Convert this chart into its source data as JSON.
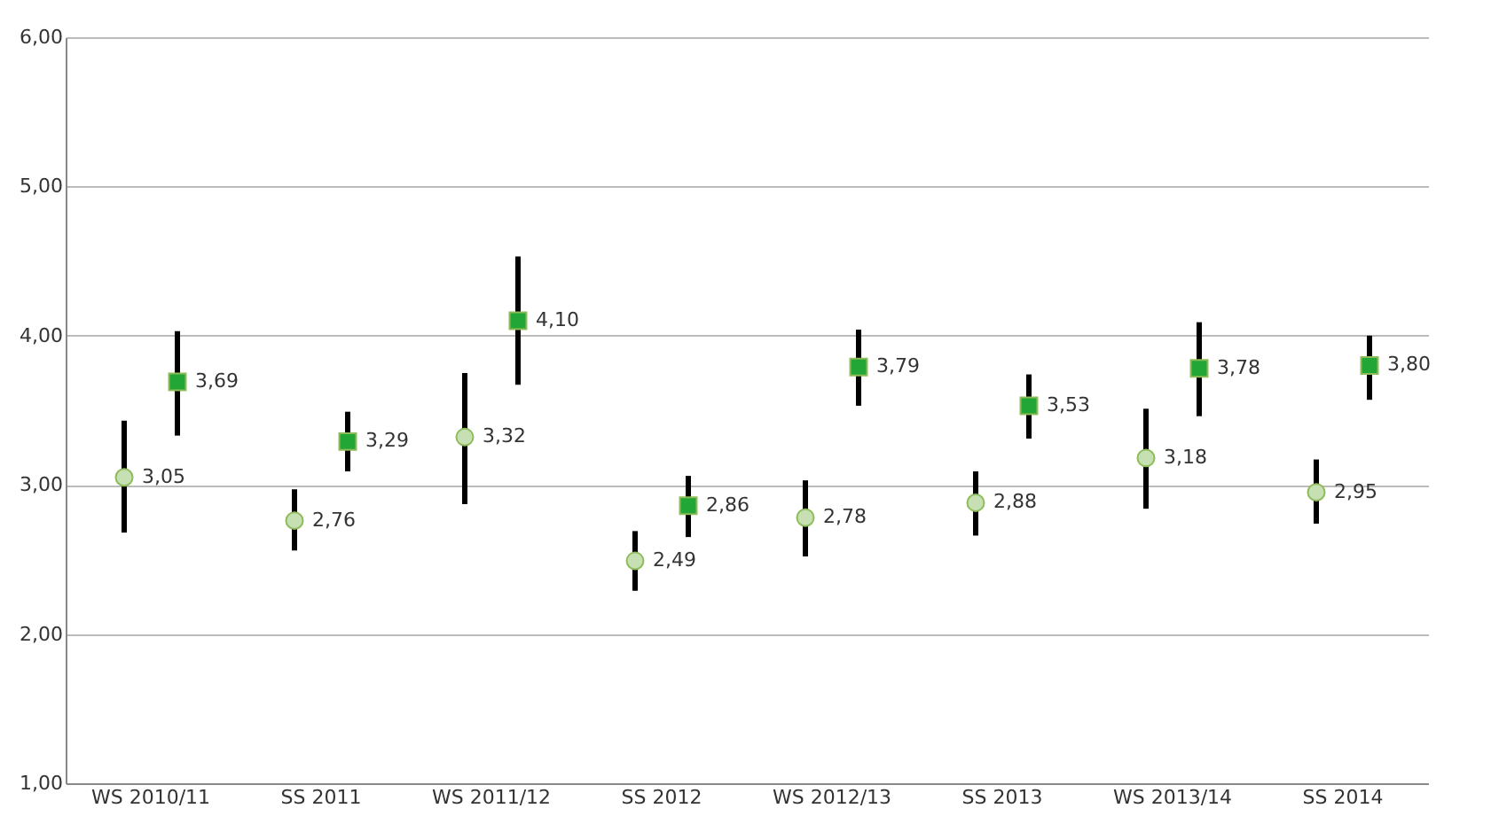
{
  "chart_data": {
    "type": "scatter",
    "categories": [
      "WS 2010/11",
      "SS 2011",
      "WS 2011/12",
      "SS 2012",
      "WS 2012/13",
      "SS 2013",
      "WS 2013/14",
      "SS 2014"
    ],
    "series": [
      {
        "color": "#c6e0b4",
        "marker": "circle",
        "values": [
          3.05,
          2.76,
          3.32,
          2.49,
          2.78,
          2.88,
          3.18,
          2.95
        ],
        "value_labels": [
          "3,05",
          "2,76",
          "3,32",
          "2,49",
          "2,78",
          "2,88",
          "3,18",
          "2,95"
        ],
        "errors": [
          [
            2.68,
            3.43
          ],
          [
            2.56,
            2.97
          ],
          [
            2.87,
            3.75
          ],
          [
            2.29,
            2.69
          ],
          [
            2.52,
            3.03
          ],
          [
            2.66,
            3.09
          ],
          [
            2.84,
            3.51
          ],
          [
            2.74,
            3.17
          ]
        ]
      },
      {
        "color": "#22a636",
        "marker": "square",
        "values": [
          3.69,
          3.29,
          4.1,
          2.86,
          3.79,
          3.53,
          3.78,
          3.8
        ],
        "value_labels": [
          "3,69",
          "3,29",
          "4,10",
          "2,86",
          "3,79",
          "3,53",
          "3,78",
          "3,80"
        ],
        "errors": [
          [
            3.33,
            4.03
          ],
          [
            3.09,
            3.49
          ],
          [
            3.67,
            4.53
          ],
          [
            2.65,
            3.06
          ],
          [
            3.53,
            4.04
          ],
          [
            3.31,
            3.74
          ],
          [
            3.46,
            4.09
          ],
          [
            3.57,
            4.0
          ]
        ]
      }
    ],
    "ylim": [
      1,
      6
    ],
    "yticks": [
      {
        "value": 1,
        "label": "1,00"
      },
      {
        "value": 2,
        "label": "2,00"
      },
      {
        "value": 3,
        "label": "3,00"
      },
      {
        "value": 4,
        "label": "4,00"
      },
      {
        "value": 5,
        "label": "5,00"
      },
      {
        "value": 6,
        "label": "6,00"
      }
    ],
    "grid": "y"
  }
}
